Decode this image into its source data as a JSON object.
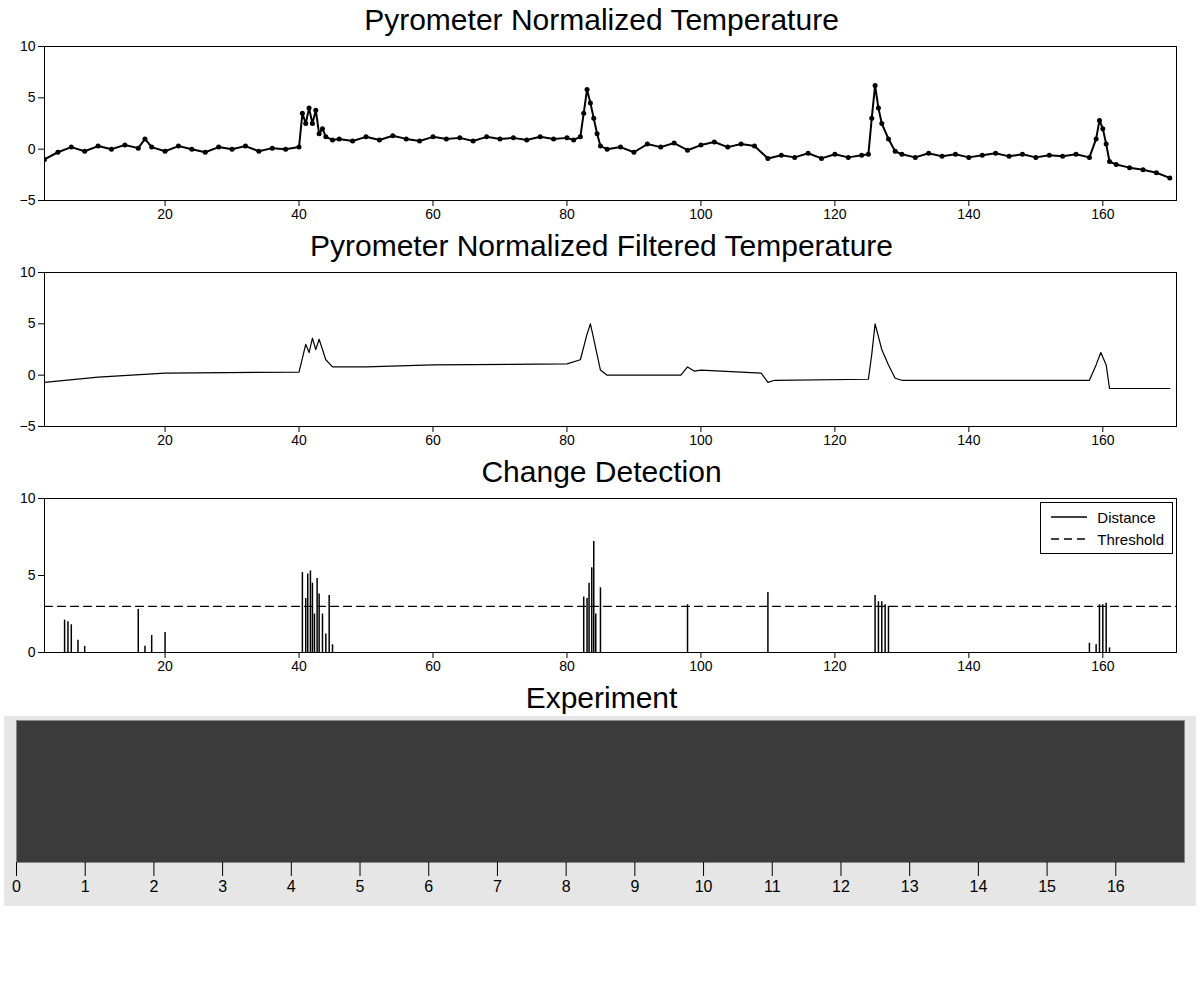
{
  "chart_data": [
    {
      "type": "line",
      "title": "Pyrometer Normalized Temperature",
      "marker": "dot",
      "color": "#000000",
      "x": [
        2,
        4,
        6,
        8,
        10,
        12,
        14,
        16,
        17,
        18,
        20,
        22,
        24,
        26,
        28,
        30,
        32,
        34,
        36,
        38,
        40,
        40.5,
        41,
        41.5,
        42,
        42.5,
        43,
        43.5,
        44,
        45,
        46,
        48,
        50,
        52,
        54,
        56,
        58,
        60,
        62,
        64,
        66,
        68,
        70,
        72,
        74,
        76,
        78,
        80,
        81,
        82,
        82.5,
        83,
        83.5,
        84,
        84.5,
        85,
        86,
        88,
        90,
        92,
        94,
        96,
        98,
        100,
        102,
        104,
        106,
        108,
        110,
        112,
        114,
        116,
        118,
        120,
        122,
        124,
        125,
        125.5,
        126,
        126.5,
        127,
        128,
        129,
        130,
        132,
        134,
        136,
        138,
        140,
        142,
        144,
        146,
        148,
        150,
        152,
        154,
        156,
        158,
        159,
        159.5,
        160,
        160.5,
        161,
        162,
        164,
        166,
        168,
        170
      ],
      "values": [
        -1,
        -0.3,
        0.2,
        -0.2,
        0.3,
        0,
        0.4,
        0.1,
        1,
        0.2,
        -0.2,
        0.3,
        0,
        -0.3,
        0.2,
        0,
        0.3,
        -0.2,
        0.1,
        0,
        0.2,
        3.5,
        2.5,
        4,
        2.5,
        3.8,
        1.5,
        2,
        1.2,
        0.9,
        1.0,
        0.8,
        1.2,
        0.9,
        1.3,
        1.0,
        0.8,
        1.2,
        1.0,
        1.1,
        0.8,
        1.2,
        1.0,
        1.1,
        0.9,
        1.2,
        1.0,
        1.1,
        0.9,
        1.2,
        3.5,
        5.8,
        4.5,
        3,
        1.5,
        0.3,
        0,
        0.2,
        -0.3,
        0.5,
        0.2,
        0.6,
        -0.1,
        0.4,
        0.7,
        0.2,
        0.5,
        0.3,
        -0.9,
        -0.6,
        -0.8,
        -0.4,
        -0.9,
        -0.5,
        -0.8,
        -0.6,
        -0.5,
        3,
        6.2,
        4,
        2.5,
        1,
        -0.2,
        -0.5,
        -0.8,
        -0.4,
        -0.7,
        -0.5,
        -0.8,
        -0.6,
        -0.4,
        -0.7,
        -0.5,
        -0.8,
        -0.6,
        -0.7,
        -0.5,
        -0.8,
        1,
        2.8,
        2,
        0.5,
        -1.2,
        -1.5,
        -1.8,
        -2,
        -2.3,
        -2.8
      ],
      "xlim": [
        2,
        171
      ],
      "xticks": [
        20,
        40,
        60,
        80,
        100,
        120,
        140,
        160
      ],
      "ylim": [
        -5,
        10
      ],
      "yticks": [
        -5,
        0,
        5,
        10
      ]
    },
    {
      "type": "line",
      "title": "Pyrometer Normalized Filtered Temperature",
      "color": "#000000",
      "x": [
        2,
        10,
        20,
        40,
        41,
        41.5,
        42,
        42.5,
        43,
        44,
        45,
        50,
        60,
        80,
        82,
        83,
        83.5,
        84,
        85,
        86,
        97,
        98,
        99,
        100,
        109,
        110,
        111,
        125,
        125.5,
        126,
        127,
        128,
        129,
        130,
        158,
        159,
        159.7,
        160.5,
        161,
        170
      ],
      "values": [
        -0.7,
        -0.2,
        0.2,
        0.3,
        3,
        2.2,
        3.6,
        2.5,
        3.5,
        1.5,
        0.8,
        0.8,
        1.0,
        1.1,
        1.5,
        4,
        5,
        3.5,
        0.5,
        0,
        0,
        0.8,
        0.4,
        0.5,
        0.2,
        -0.7,
        -0.5,
        -0.4,
        2,
        5,
        2.5,
        1,
        -0.3,
        -0.5,
        -0.5,
        1,
        2.2,
        1,
        -1.3,
        -1.3
      ],
      "xlim": [
        2,
        171
      ],
      "xticks": [
        20,
        40,
        60,
        80,
        100,
        120,
        140,
        160
      ],
      "ylim": [
        -5,
        10
      ],
      "yticks": [
        -5,
        0,
        5,
        10
      ]
    },
    {
      "type": "bar",
      "title": "Change Detection",
      "legend": "top-right",
      "series": [
        {
          "name": "Distance",
          "type": "bar",
          "color": "#000000",
          "line_style": "solid",
          "x": [
            5,
            5.5,
            6,
            7,
            8,
            16,
            17,
            18,
            20,
            40.5,
            41,
            41.3,
            41.7,
            42,
            42.3,
            42.7,
            43,
            43.5,
            44,
            44.5,
            45,
            82.5,
            83,
            83.3,
            83.7,
            84,
            84.3,
            85,
            98,
            110,
            126,
            126.5,
            127,
            127.5,
            128,
            158,
            159,
            159.5,
            160,
            160.5,
            161
          ],
          "values": [
            2.1,
            2,
            1.8,
            0.8,
            0.4,
            2.8,
            0.4,
            1.1,
            1.3,
            5.2,
            3.5,
            5.1,
            5.3,
            4.5,
            2.5,
            4.8,
            3.8,
            2.5,
            1.2,
            3.7,
            0.5,
            3.6,
            3.5,
            4.5,
            5.5,
            7.2,
            2.5,
            4.2,
            3.1,
            3.9,
            3.7,
            3.3,
            3.3,
            3.1,
            3,
            0.6,
            0.5,
            3.1,
            3.1,
            3.2,
            0.3
          ]
        },
        {
          "name": "Threshold",
          "type": "line",
          "color": "#000000",
          "line_style": "dashed",
          "x": [
            2,
            171
          ],
          "values": [
            3,
            3
          ]
        }
      ],
      "xlim": [
        2,
        171
      ],
      "xticks": [
        20,
        40,
        60,
        80,
        100,
        120,
        140,
        160
      ],
      "ylim": [
        0,
        10
      ],
      "yticks": [
        0,
        5,
        10
      ]
    },
    {
      "type": "ruler",
      "title": "Experiment",
      "xlim": [
        0,
        17
      ],
      "xticks": [
        0,
        1,
        2,
        3,
        4,
        5,
        6,
        7,
        8,
        9,
        10,
        11,
        12,
        13,
        14,
        15,
        16
      ],
      "tick_labels": "x"
    }
  ]
}
